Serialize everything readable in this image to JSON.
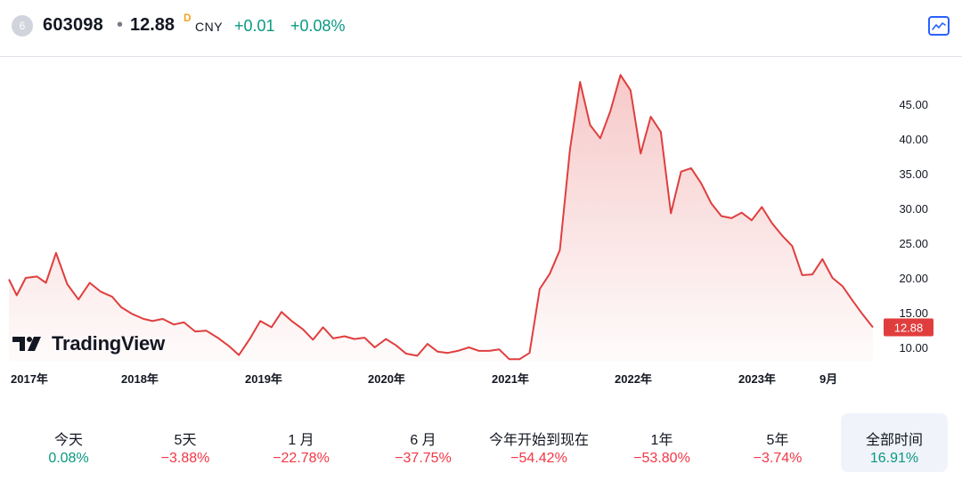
{
  "header": {
    "symbol_badge": "6",
    "symbol": "603098",
    "separator": "•",
    "price": "12.88",
    "price_flag": "D",
    "currency": "CNY",
    "change": "+0.01",
    "change_percent": "+0.08%",
    "chart_type_icon": "line-chart-icon"
  },
  "logo": {
    "text": "TradingView",
    "icon": "tradingview-logo-icon"
  },
  "colors": {
    "line": "#e03e3e",
    "positive": "#089981",
    "negative": "#f23645",
    "badge_bg": "#e03e3e"
  },
  "chart_data": {
    "type": "area",
    "x_labels": [
      "2017年",
      "2018年",
      "2019年",
      "2020年",
      "2021年",
      "2022年",
      "2023年",
      "9月"
    ],
    "y_ticks": [
      "45.00",
      "40.00",
      "35.00",
      "30.00",
      "25.00",
      "20.00",
      "15.00",
      "10.00"
    ],
    "ylim": [
      7.5,
      50
    ],
    "last_value_label": "12.88",
    "grid": false,
    "series": [
      {
        "values": [
          [
            2017.0,
            19.8
          ],
          [
            2017.07,
            17.5
          ],
          [
            2017.15,
            20.0
          ],
          [
            2017.25,
            20.2
          ],
          [
            2017.33,
            19.3
          ],
          [
            2017.42,
            23.6
          ],
          [
            2017.52,
            19.1
          ],
          [
            2017.62,
            16.9
          ],
          [
            2017.72,
            19.3
          ],
          [
            2017.82,
            18.0
          ],
          [
            2017.92,
            17.3
          ],
          [
            2018.0,
            15.8
          ],
          [
            2018.1,
            14.8
          ],
          [
            2018.2,
            14.1
          ],
          [
            2018.28,
            13.8
          ],
          [
            2018.37,
            14.1
          ],
          [
            2018.47,
            13.3
          ],
          [
            2018.56,
            13.6
          ],
          [
            2018.66,
            12.3
          ],
          [
            2018.76,
            12.4
          ],
          [
            2018.86,
            11.4
          ],
          [
            2018.96,
            10.2
          ],
          [
            2019.05,
            8.9
          ],
          [
            2019.15,
            11.3
          ],
          [
            2019.24,
            13.8
          ],
          [
            2019.34,
            12.9
          ],
          [
            2019.43,
            15.1
          ],
          [
            2019.52,
            13.8
          ],
          [
            2019.62,
            12.6
          ],
          [
            2019.71,
            11.1
          ],
          [
            2019.8,
            12.9
          ],
          [
            2019.89,
            11.3
          ],
          [
            2019.99,
            11.6
          ],
          [
            2020.08,
            11.2
          ],
          [
            2020.17,
            11.4
          ],
          [
            2020.26,
            10.0
          ],
          [
            2020.36,
            11.2
          ],
          [
            2020.45,
            10.3
          ],
          [
            2020.54,
            9.1
          ],
          [
            2020.64,
            8.8
          ],
          [
            2020.73,
            10.5
          ],
          [
            2020.82,
            9.4
          ],
          [
            2020.91,
            9.2
          ],
          [
            2021.0,
            9.5
          ],
          [
            2021.1,
            10.0
          ],
          [
            2021.19,
            9.5
          ],
          [
            2021.28,
            9.5
          ],
          [
            2021.37,
            9.7
          ],
          [
            2021.46,
            8.3
          ],
          [
            2021.55,
            8.3
          ],
          [
            2021.64,
            9.2
          ],
          [
            2021.73,
            18.4
          ],
          [
            2021.82,
            20.6
          ],
          [
            2021.91,
            24.0
          ],
          [
            2022.0,
            38.5
          ],
          [
            2022.09,
            48.2
          ],
          [
            2022.18,
            42.0
          ],
          [
            2022.27,
            40.1
          ],
          [
            2022.36,
            44.0
          ],
          [
            2022.45,
            49.2
          ],
          [
            2022.54,
            47.0
          ],
          [
            2022.63,
            37.9
          ],
          [
            2022.72,
            43.2
          ],
          [
            2022.81,
            41.0
          ],
          [
            2022.9,
            29.3
          ],
          [
            2022.99,
            35.3
          ],
          [
            2023.08,
            35.8
          ],
          [
            2023.17,
            33.6
          ],
          [
            2023.26,
            30.7
          ],
          [
            2023.35,
            28.9
          ],
          [
            2023.44,
            28.6
          ],
          [
            2023.53,
            29.4
          ],
          [
            2023.62,
            28.3
          ],
          [
            2023.71,
            30.2
          ],
          [
            2023.8,
            27.9
          ],
          [
            2023.89,
            26.1
          ],
          [
            2023.98,
            24.6
          ],
          [
            2024.07,
            20.4
          ],
          [
            2024.16,
            20.5
          ],
          [
            2024.25,
            22.7
          ],
          [
            2024.34,
            20.0
          ],
          [
            2024.43,
            18.8
          ],
          [
            2024.52,
            16.7
          ],
          [
            2024.61,
            14.7
          ],
          [
            2024.7,
            12.88
          ]
        ]
      }
    ]
  },
  "periods": [
    {
      "label": "今天",
      "value": "0.08%",
      "sign": "pos",
      "active": false
    },
    {
      "label": "5天",
      "value": "−3.88%",
      "sign": "neg",
      "active": false
    },
    {
      "label": "1 月",
      "value": "−22.78%",
      "sign": "neg",
      "active": false
    },
    {
      "label": "6 月",
      "value": "−37.75%",
      "sign": "neg",
      "active": false
    },
    {
      "label": "今年开始到现在",
      "value": "−54.42%",
      "sign": "neg",
      "active": false
    },
    {
      "label": "1年",
      "value": "−53.80%",
      "sign": "neg",
      "active": false
    },
    {
      "label": "5年",
      "value": "−3.74%",
      "sign": "neg",
      "active": false
    },
    {
      "label": "全部时间",
      "value": "16.91%",
      "sign": "pos",
      "active": true
    }
  ]
}
